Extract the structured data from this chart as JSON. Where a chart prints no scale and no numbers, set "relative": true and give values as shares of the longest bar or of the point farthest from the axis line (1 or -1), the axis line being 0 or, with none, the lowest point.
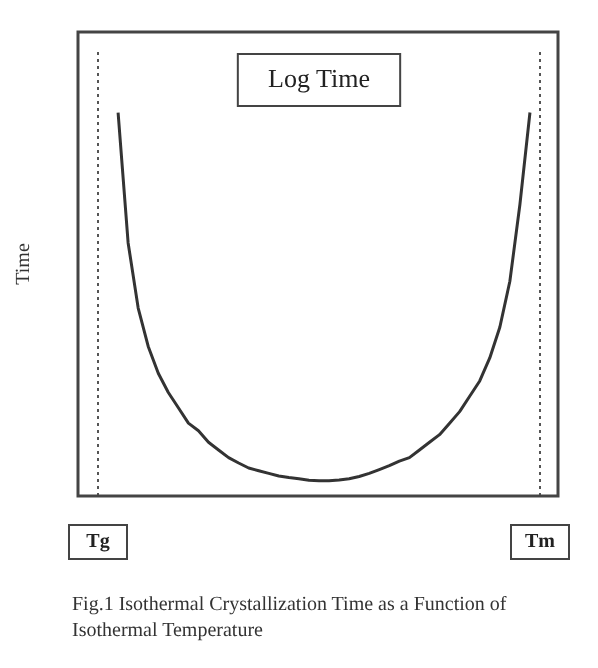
{
  "chart_data": {
    "type": "line",
    "title": "Log Time",
    "ylabel": "Time",
    "relative": true,
    "color": "#333333",
    "marker": "none",
    "line_style": "solid",
    "grid": false,
    "legend": false,
    "categories": [
      "Tg",
      null,
      null,
      null,
      null,
      null,
      null,
      null,
      null,
      null,
      null,
      null,
      null,
      null,
      null,
      null,
      null,
      null,
      null,
      null,
      null,
      null,
      null,
      null,
      null,
      null,
      null,
      null,
      null,
      null,
      null,
      null,
      null,
      null,
      null,
      null,
      null,
      null,
      null,
      null,
      null,
      null,
      null,
      null,
      "Tm"
    ],
    "values": [
      null,
      null,
      1.0,
      0.66,
      0.49,
      0.39,
      0.32,
      0.27,
      0.23,
      0.19,
      0.17,
      0.14,
      0.12,
      0.1,
      0.086,
      0.073,
      0.066,
      0.059,
      0.052,
      0.048,
      0.045,
      0.041,
      0.04,
      0.04,
      0.042,
      0.045,
      0.051,
      0.059,
      0.069,
      0.079,
      0.091,
      0.1,
      0.12,
      0.14,
      0.16,
      0.19,
      0.22,
      0.26,
      0.3,
      0.36,
      0.44,
      0.56,
      0.76,
      1.0,
      null
    ],
    "ref_lines": [
      {
        "axis": "x",
        "value": "Tg",
        "line_style": "dotted",
        "color": "#555555"
      },
      {
        "axis": "x",
        "value": "Tm",
        "line_style": "dotted",
        "color": "#555555"
      }
    ],
    "annotations": [
      "Fig.1  Isothermal Crystallization Time as a Function of Isothermal Temperature"
    ]
  }
}
